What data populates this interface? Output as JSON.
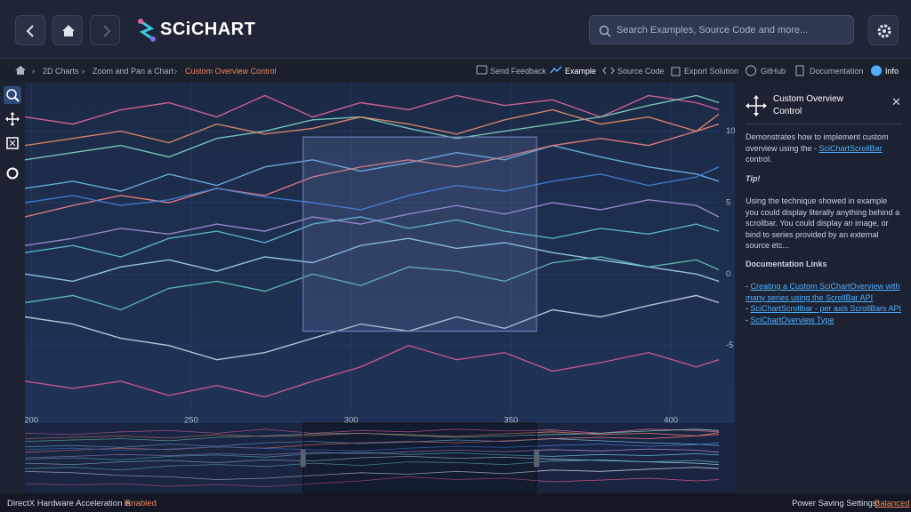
{
  "header": {
    "logo": "SCiCHART",
    "search_placeholder": "Search Examples, Source Code and more..."
  },
  "breadcrumb": [
    "2D Charts",
    "Zoom and Pan a Chart",
    "Custom Overview Control"
  ],
  "toolbar": [
    "Send Feedback",
    "Example",
    "Source Code",
    "Export Solution",
    "GitHub",
    "Documentation",
    "Info"
  ],
  "panel": {
    "title": "Custom Overview Control",
    "description_before": "Demonstrates how to implement custom overview using the - ",
    "description_link": "SciChartScrollBar",
    "description_after": " control.",
    "tip_heading": "Tip!",
    "tip": "Using the technique showed in example you could display literally anything behind a scrollbar. You could display an image, or bind to series provided by an external source etc...",
    "links_heading": "Documentation Links",
    "link_prefix": "- ",
    "links": [
      "Creating a Custom SciChartOverview with many series using the ScrollBar API",
      "SciChartScrollbar - per axis ScrollBars API",
      "SciChartOverview Type"
    ]
  },
  "status": {
    "left": "DirectX Hardware Acceleration is",
    "left_value": "Enabled",
    "right": "Power Saving Settings:",
    "right_value": "Balanced"
  },
  "chart_data": {
    "type": "line",
    "x": [
      198,
      213,
      228,
      243,
      258,
      273,
      288,
      303,
      318,
      333,
      348,
      363,
      378,
      393,
      408,
      415
    ],
    "series": [
      {
        "color": "#e0669a",
        "values": [
          11,
          10.5,
          11.5,
          12,
          11,
          12.5,
          11,
          12,
          11.5,
          12.5,
          11.8,
          12.2,
          11,
          12.5,
          12,
          11.5
        ]
      },
      {
        "color": "#7dd3c0",
        "values": [
          8,
          8.5,
          9,
          8.2,
          9.5,
          10,
          10.8,
          11,
          10.2,
          9.5,
          10,
          10.5,
          11,
          11.8,
          12.5,
          12
        ]
      },
      {
        "color": "#6fb6e8",
        "values": [
          6,
          6.5,
          5.8,
          7,
          6.2,
          7.5,
          8,
          7.2,
          7.8,
          8.5,
          8,
          9,
          8.2,
          7.5,
          7,
          6.5
        ]
      },
      {
        "color": "#f08080",
        "values": [
          4,
          4.8,
          5.5,
          5,
          6,
          5.5,
          6.8,
          7.5,
          8,
          7.5,
          8.2,
          9,
          9.5,
          9,
          10,
          10.5
        ]
      },
      {
        "color": "#a58fd8",
        "values": [
          2,
          2.5,
          3.2,
          2.8,
          3.5,
          3,
          4,
          3.5,
          4.2,
          4.8,
          4.2,
          5,
          4.5,
          5.2,
          4.8,
          4
        ]
      },
      {
        "color": "#9fd0f0",
        "values": [
          0,
          -0.5,
          0.5,
          1,
          0.2,
          1.2,
          0.8,
          2,
          2.5,
          1.8,
          2.2,
          1.5,
          1,
          0.5,
          0,
          -0.5
        ]
      },
      {
        "color": "#5fbfb0",
        "values": [
          -2,
          -1.5,
          -2.5,
          -1,
          -0.5,
          -1.2,
          0,
          -0.8,
          0.5,
          0.2,
          -0.5,
          0.8,
          1.2,
          0.5,
          1,
          0.3
        ]
      },
      {
        "color": "#c8d2e0",
        "values": [
          -3,
          -3.5,
          -4.5,
          -5,
          -6,
          -5.5,
          -4.5,
          -3.5,
          -4,
          -3,
          -3.8,
          -2.5,
          -3,
          -2.2,
          -1.5,
          -2
        ]
      },
      {
        "color": "#d65a8c",
        "values": [
          -7.5,
          -8,
          -7.5,
          -8.5,
          -7.8,
          -8.6,
          -7.5,
          -6.5,
          -5,
          -6,
          -5.5,
          -6.8,
          -6.2,
          -5.5,
          -6.5,
          -6
        ]
      },
      {
        "color": "#3f7fd6",
        "values": [
          5,
          5.5,
          4.8,
          5.2,
          6,
          5.4,
          5,
          4.5,
          5.5,
          6.2,
          5.8,
          6.5,
          7,
          6.2,
          6.8,
          7.5
        ]
      },
      {
        "color": "#e88a6a",
        "values": [
          9,
          9.5,
          10,
          9.2,
          10.5,
          9.8,
          10.2,
          11,
          10.5,
          9.8,
          10.8,
          11.5,
          10.5,
          11,
          10,
          11.2
        ]
      },
      {
        "color": "#5fc0d8",
        "values": [
          1.5,
          2,
          1.2,
          2.5,
          3,
          2.2,
          3.5,
          4,
          3.2,
          3.8,
          3,
          2.5,
          3.2,
          2.8,
          3.5,
          3
        ]
      }
    ],
    "xlim": [
      198,
      415
    ],
    "xticks": [
      200,
      250,
      300,
      350,
      400
    ],
    "ylim": [
      -9.75,
      13.4
    ],
    "yticks": [
      10,
      5,
      0,
      -5
    ],
    "overview_rect": {
      "x": [
        285,
        358
      ],
      "y": [
        -4,
        9.6
      ]
    }
  }
}
